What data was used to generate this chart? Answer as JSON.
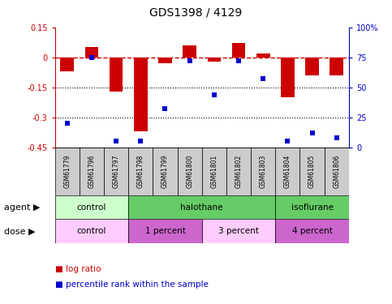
{
  "title": "GDS1398 / 4129",
  "samples": [
    "GSM61779",
    "GSM61796",
    "GSM61797",
    "GSM61798",
    "GSM61799",
    "GSM61800",
    "GSM61801",
    "GSM61802",
    "GSM61803",
    "GSM61804",
    "GSM61805",
    "GSM61806"
  ],
  "log_ratio": [
    -0.07,
    0.05,
    -0.17,
    -0.37,
    -0.03,
    0.06,
    -0.02,
    0.07,
    0.02,
    -0.2,
    -0.09,
    -0.09
  ],
  "percentile": [
    20,
    75,
    5,
    5,
    32,
    72,
    44,
    72,
    57,
    5,
    12,
    8
  ],
  "bar_color": "#cc0000",
  "dot_color": "#0000cc",
  "ylim": [
    -0.45,
    0.15
  ],
  "yticks_left": [
    -0.45,
    -0.3,
    -0.15,
    0.0,
    0.15
  ],
  "yticks_left_labels": [
    "-0.45",
    "-0.3",
    "-0.15",
    "0",
    "0.15"
  ],
  "yticks_right": [
    0,
    25,
    50,
    75,
    100
  ],
  "yticks_right_labels": [
    "0",
    "25",
    "50",
    "75",
    "100%"
  ],
  "hline_value": 0.0,
  "dotted_lines": [
    -0.15,
    -0.3
  ],
  "sample_bg_color": "#cccccc",
  "agent_groups": [
    {
      "label": "control",
      "start": 0,
      "end": 3,
      "color": "#ccffcc"
    },
    {
      "label": "halothane",
      "start": 3,
      "end": 9,
      "color": "#66cc66"
    },
    {
      "label": "isoflurane",
      "start": 9,
      "end": 12,
      "color": "#66cc66"
    }
  ],
  "dose_groups": [
    {
      "label": "control",
      "start": 0,
      "end": 3,
      "color": "#ffccff"
    },
    {
      "label": "1 percent",
      "start": 3,
      "end": 6,
      "color": "#cc66cc"
    },
    {
      "label": "3 percent",
      "start": 6,
      "end": 9,
      "color": "#ffccff"
    },
    {
      "label": "4 percent",
      "start": 9,
      "end": 12,
      "color": "#cc66cc"
    }
  ],
  "agent_label": "agent",
  "dose_label": "dose",
  "legend_log_ratio": "log ratio",
  "legend_percentile": "percentile rank within the sample",
  "arrow_char": "▶"
}
